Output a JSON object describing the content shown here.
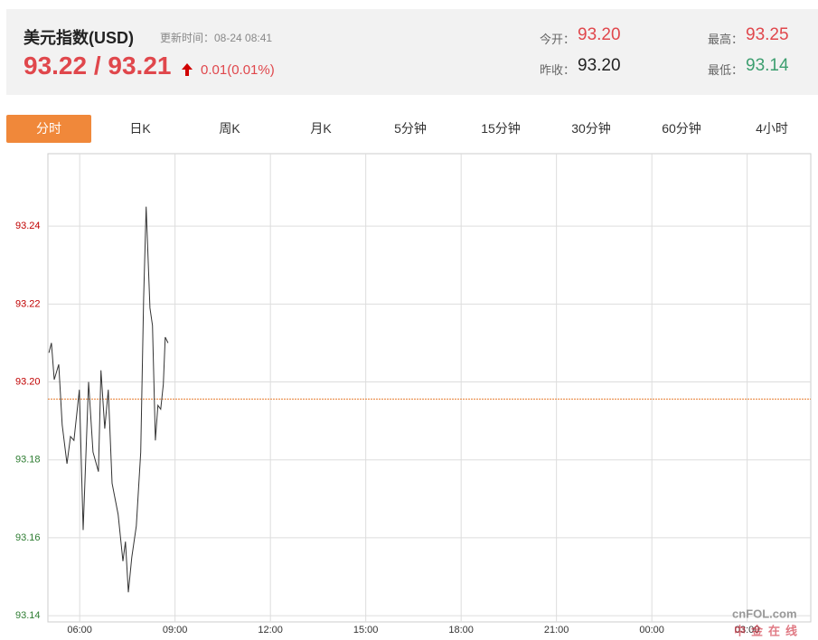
{
  "header": {
    "title": "美元指数(USD)",
    "update_time": "更新时间：08-24 08:41",
    "price": "93.22 / 93.21",
    "change": "0.01(0.01%)",
    "stats": [
      {
        "label": "今开：",
        "value": "93.20"
      },
      {
        "label": "最高：",
        "value": "93.25"
      },
      {
        "label": "昨收：",
        "value": "93.20"
      },
      {
        "label": "最低：",
        "value": "93.14"
      }
    ]
  },
  "tabs": [
    "分时",
    "日K",
    "周K",
    "月K",
    "5分钟",
    "15分钟",
    "30分钟",
    "60分钟",
    "4小时"
  ],
  "watermark": {
    "brand": "cnFOL.com",
    "name": "中金在线"
  },
  "chart_data": {
    "type": "line",
    "x": [
      5.03,
      5.11,
      5.2,
      5.34,
      5.45,
      5.6,
      5.71,
      5.82,
      5.99,
      6.11,
      6.28,
      6.42,
      6.59,
      6.67,
      6.79,
      6.9,
      7.02,
      7.21,
      7.36,
      7.44,
      7.53,
      7.64,
      7.78,
      7.92,
      8.01,
      8.09,
      8.21,
      8.29,
      8.38,
      8.46,
      8.55,
      8.63,
      8.69,
      8.78
    ],
    "values": [
      93.2075,
      93.21,
      93.2006,
      93.2045,
      93.189,
      93.179,
      93.186,
      93.185,
      93.198,
      93.162,
      93.2,
      93.182,
      93.177,
      93.203,
      93.188,
      93.198,
      93.174,
      93.166,
      93.154,
      93.159,
      93.146,
      93.155,
      93.163,
      93.182,
      93.2214,
      93.245,
      93.219,
      93.2145,
      93.185,
      93.194,
      93.193,
      93.1994,
      93.2115,
      93.21
    ],
    "color": "#333333",
    "reference_line": 93.1956,
    "reference_color": "#e8843a",
    "up_color": "#c00000",
    "down_color": "#2e7d32",
    "xlim": [
      5,
      29
    ],
    "ylim": [
      93.1384,
      93.2586
    ],
    "xticks": [
      {
        "value": 6,
        "label": "06:00"
      },
      {
        "value": 9,
        "label": "09:00"
      },
      {
        "value": 12,
        "label": "12:00"
      },
      {
        "value": 15,
        "label": "15:00"
      },
      {
        "value": 18,
        "label": "18:00"
      },
      {
        "value": 21,
        "label": "21:00"
      },
      {
        "value": 24,
        "label": "00:00"
      },
      {
        "value": 27,
        "label": "03:00"
      }
    ],
    "yticks": [
      {
        "value": 93.14,
        "label": "93.14"
      },
      {
        "value": 93.16,
        "label": "93.16"
      },
      {
        "value": 93.18,
        "label": "93.18"
      },
      {
        "value": 93.2,
        "label": "93.20"
      },
      {
        "value": 93.22,
        "label": "93.22"
      },
      {
        "value": 93.24,
        "label": "93.24"
      }
    ],
    "grid": true
  }
}
